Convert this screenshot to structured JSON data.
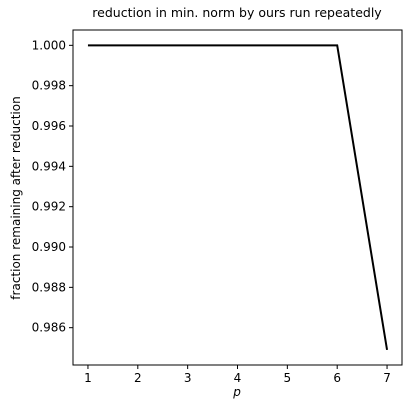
{
  "chart_data": {
    "type": "line",
    "title": "reduction in min. norm by ours run repeatedly",
    "x_label": "p",
    "y_label": "fraction remaining after reduction",
    "x": [
      1,
      2,
      3,
      4,
      5,
      6,
      7
    ],
    "series": [
      {
        "name": "ours",
        "color": "#000000",
        "values": [
          1,
          1,
          1,
          1,
          1,
          1,
          0.9849
        ]
      }
    ],
    "xlim": [
      0.7,
      7.3
    ],
    "xticks": [
      1,
      2,
      3,
      4,
      5,
      6,
      7
    ],
    "ylim": [
      0.98415,
      1.00076
    ],
    "yticks": [
      {
        "value": 0.986,
        "label": "0.986"
      },
      {
        "value": 0.988,
        "label": "0.988"
      },
      {
        "value": 0.99,
        "label": "0.990"
      },
      {
        "value": 0.992,
        "label": "0.992"
      },
      {
        "value": 0.994,
        "label": "0.994"
      },
      {
        "value": 0.996,
        "label": "0.996"
      },
      {
        "value": 0.998,
        "label": "0.998"
      },
      {
        "value": 1,
        "label": "1.000"
      }
    ],
    "grid": false,
    "legend": false
  }
}
